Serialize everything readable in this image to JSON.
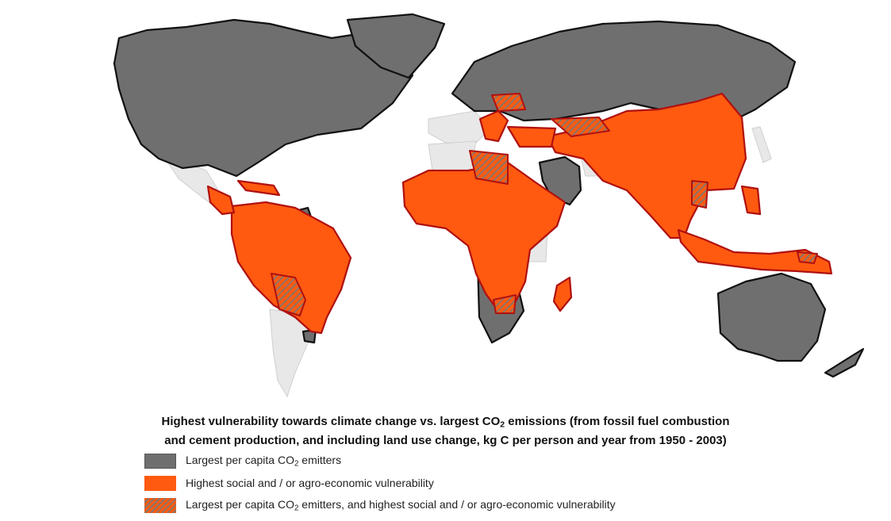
{
  "caption": {
    "line1_a": "Highest vulnerability towards climate change vs. largest CO",
    "line1_sub": "2",
    "line1_b": " emissions (from fossil fuel combustion",
    "line2": "and cement production, and including land use change, kg C per person and year from 1950 - 2003)"
  },
  "legend": [
    {
      "key": "emitters",
      "a": "Largest per capita CO",
      "sub": "2",
      "b": " emitters",
      "color": "#6f6f6f"
    },
    {
      "key": "vulnerable",
      "a": "Highest social and / or agro-economic vulnerability",
      "sub": "",
      "b": "",
      "color": "#ff5a10"
    },
    {
      "key": "both",
      "a": "Largest per capita CO",
      "sub": "2",
      "b": " emitters, and highest social and / or agro-economic vulnerability",
      "color": "#ff5a10"
    }
  ],
  "colors": {
    "emitter_gray": "#6f6f6f",
    "vulnerable_orange": "#ff5a10",
    "other_land": "#e8e8e8",
    "vulnerable_border": "#b01010"
  }
}
